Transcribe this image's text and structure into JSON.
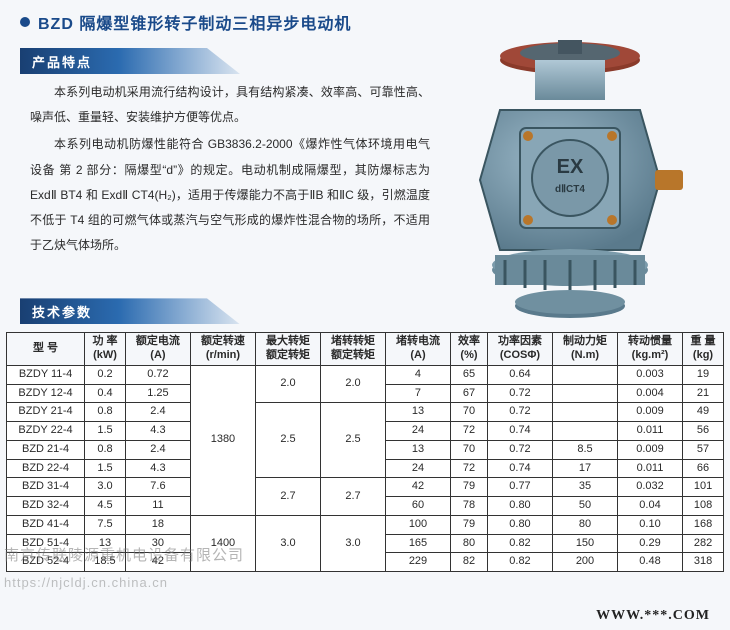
{
  "title": "BZD 隔爆型锥形转子制动三相异步电动机",
  "section_features_label": "产品特点",
  "features_p1": "本系列电动机采用流行结构设计，具有结构紧凑、效率高、可靠性高、噪声低、重量轻、安装维护方便等优点。",
  "features_p2": "本系列电动机防爆性能符合 GB3836.2-2000《爆炸性气体环境用电气设备 第 2 部分：隔爆型“d”》的规定。电动机制成隔爆型，其防爆标志为 ExdⅡ BT4 和 ExdⅡ CT4(H₂)，适用于传爆能力不高于ⅡB 和ⅡC 级，引燃温度不低于 T4 组的可燃气体或蒸汽与空气形成的爆炸性混合物的场所，不适用于乙炔气体场所。",
  "section_spec_label": "技术参数",
  "table": {
    "headers": {
      "model": "型 号",
      "power": "功 率\n(kW)",
      "current": "额定电流\n(A)",
      "speed": "额定转速\n(r/min)",
      "max_torque": "最大转矩\n额定转矩",
      "stall_torque": "堵转转矩\n额定转矩",
      "stall_current": "堵转电流\n(A)",
      "eff": "效率\n(%)",
      "pf": "功率因素\n(COSΦ)",
      "brake_torque": "制动力矩\n(N.m)",
      "inertia": "转动惯量\n(kg.m²)",
      "weight": "重 量\n(kg)"
    },
    "groups": [
      {
        "speed": "1380",
        "mt": "2.0",
        "st": "2.0",
        "rows": [
          {
            "model": "BZDY 11-4",
            "kw": "0.2",
            "a": "0.72",
            "sc": "4",
            "eff": "65",
            "pf": "0.64",
            "bt": "",
            "in": "0.003",
            "wt": "19"
          },
          {
            "model": "BZDY 12-4",
            "kw": "0.4",
            "a": "1.25",
            "sc": "7",
            "eff": "67",
            "pf": "0.72",
            "bt": "",
            "in": "0.004",
            "wt": "21"
          }
        ]
      },
      {
        "speed": "1380",
        "mt": "2.5",
        "st": "2.5",
        "rows": [
          {
            "model": "BZDY 21-4",
            "kw": "0.8",
            "a": "2.4",
            "sc": "13",
            "eff": "70",
            "pf": "0.72",
            "bt": "",
            "in": "0.009",
            "wt": "49"
          },
          {
            "model": "BZDY 22-4",
            "kw": "1.5",
            "a": "4.3",
            "sc": "24",
            "eff": "72",
            "pf": "0.74",
            "bt": "",
            "in": "0.011",
            "wt": "56"
          },
          {
            "model": "BZD 21-4",
            "kw": "0.8",
            "a": "2.4",
            "sc": "13",
            "eff": "70",
            "pf": "0.72",
            "bt": "8.5",
            "in": "0.009",
            "wt": "57"
          },
          {
            "model": "BZD 22-4",
            "kw": "1.5",
            "a": "4.3",
            "sc": "24",
            "eff": "72",
            "pf": "0.74",
            "bt": "17",
            "in": "0.011",
            "wt": "66"
          }
        ]
      },
      {
        "speed": "1380",
        "mt": "2.7",
        "st": "2.7",
        "rows": [
          {
            "model": "BZD 31-4",
            "kw": "3.0",
            "a": "7.6",
            "sc": "42",
            "eff": "79",
            "pf": "0.77",
            "bt": "35",
            "in": "0.032",
            "wt": "101"
          },
          {
            "model": "BZD 32-4",
            "kw": "4.5",
            "a": "11",
            "sc": "60",
            "eff": "78",
            "pf": "0.80",
            "bt": "50",
            "in": "0.04",
            "wt": "108"
          }
        ]
      },
      {
        "speed": "1400",
        "mt": "3.0",
        "st": "3.0",
        "rows": [
          {
            "model": "BZD 41-4",
            "kw": "7.5",
            "a": "18",
            "sc": "100",
            "eff": "79",
            "pf": "0.80",
            "bt": "80",
            "in": "0.10",
            "wt": "168"
          },
          {
            "model": "BZD 51-4",
            "kw": "13",
            "a": "30",
            "sc": "165",
            "eff": "80",
            "pf": "0.82",
            "bt": "150",
            "in": "0.29",
            "wt": "282"
          },
          {
            "model": "BZD 52-4",
            "kw": "18.5",
            "a": "42",
            "sc": "229",
            "eff": "82",
            "pf": "0.82",
            "bt": "200",
            "in": "0.48",
            "wt": "318"
          }
        ]
      }
    ]
  },
  "watermark_line1": "南京传联陵源重机电设备有限公司",
  "watermark_line2": "https://njcldj.cn.china.cn",
  "footer_url": "WWW.***.COM",
  "colors": {
    "brand": "#1a4a8a",
    "tab_dark": "#193f72",
    "tab_light": "#2b6bb0",
    "border": "#333333",
    "bg": "#f5f7fa"
  }
}
